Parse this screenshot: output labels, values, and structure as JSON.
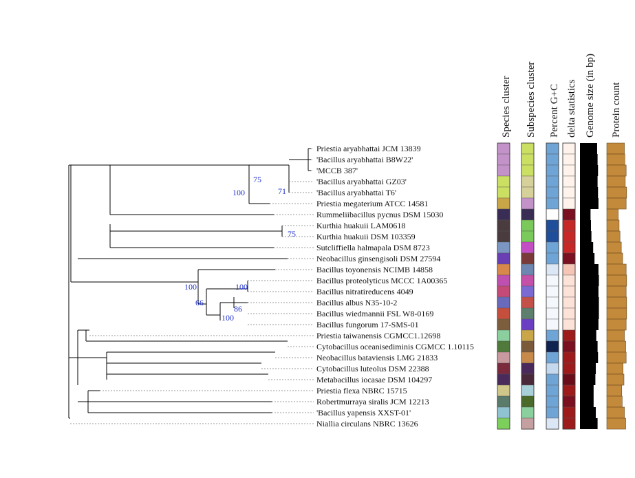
{
  "columns": [
    "Species cluster",
    "Subspecies cluster",
    "Percent G+C",
    "delta statistics",
    "Genome size (in bp)",
    "Protein count"
  ],
  "taxa": [
    "Priestia aryabhattai JCM 13839",
    "'Bacillus  aryabhattai  B8W22'",
    "'MCCB  387'",
    "'Bacillus  aryabhattai  GZ03'",
    "'Bacillus  aryabhattai  T6'",
    "Priestia megaterium ATCC 14581",
    "Rummeliibacillus pycnus DSM 15030",
    "Kurthia huakuii LAM0618",
    "Kurthia huakuii DSM 103359",
    "Sutcliffiella halmapala DSM 8723",
    "Neobacillus ginsengisoli DSM 27594",
    "Bacillus toyonensis NCIMB 14858",
    "Bacillus proteolyticus MCCC 1A00365",
    "Bacillus nitratireducens 4049",
    "Bacillus albus N35-10-2",
    "Bacillus wiedmannii FSL W8-0169",
    "Bacillus fungorum 17-SMS-01",
    "Priestia taiwanensis CGMCC1.12698",
    "Cytobacillus oceanisediminis CGMCC 1.10115",
    "Neobacillus bataviensis LMG 21833",
    "Cytobacillus luteolus DSM 22388",
    "Metabacillus iocasae DSM 104297",
    "Priestia flexa NBRC 15715",
    "Robertmurraya siralis JCM 12213",
    "'Bacillus yapensis XXST-01'",
    "Niallia circulans NBRC 13626"
  ],
  "bootstrap_labels": [
    "75",
    "100",
    "71",
    "75",
    "100",
    "100",
    "66",
    "86",
    "100"
  ],
  "colors": {
    "branch": "#000000",
    "bootstrap": "#2233cc",
    "bar_fill": "#c38a3c",
    "bar_stroke": "#6b4a1c",
    "genome_bar": "#000000"
  },
  "species_cluster_colors": [
    "#c392c9",
    "#c392c9",
    "#c392c9",
    "#cbe062",
    "#cbe062",
    "#c9a648",
    "#3a2d55",
    "#4a3c3e",
    "#4a3c3e",
    "#7b96c2",
    "#6a3fb4",
    "#d8884a",
    "#c050b0",
    "#c64a78",
    "#6a6abd",
    "#c44f3c",
    "#7d5e3c",
    "#8bcf9e",
    "#4f7a3c",
    "#c89aa0",
    "#7a2a3c",
    "#4a2a5a",
    "#cfc68a",
    "#5a7a6a",
    "#8fc3cf",
    "#7ccf5a"
  ],
  "subspecies_cluster_colors": [
    "#cbe062",
    "#cbe062",
    "#cbe062",
    "#d6d19a",
    "#d6d19a",
    "#c392c9",
    "#3a2d55",
    "#7bc95a",
    "#7bc95a",
    "#c44fc4",
    "#7a3a3a",
    "#6e86b2",
    "#c450a8",
    "#7a6ad2",
    "#c4504a",
    "#5e7e6e",
    "#6a3fc4",
    "#c9a648",
    "#7a5a3a",
    "#c88a4a",
    "#4a2a5a",
    "#4a2a3a",
    "#a8d0d8",
    "#4a6a2a",
    "#8bcf9e",
    "#c4a0a0"
  ],
  "gc_colors": [
    "#6fa4d6",
    "#6fa4d6",
    "#6fa4d6",
    "#6fa4d6",
    "#6fa4d6",
    "#6fa4d6",
    "#ffffff",
    "#1f4e9a",
    "#1f4e9a",
    "#6fa4d6",
    "#6fa4d6",
    "#dbe7f5",
    "#f4f7fc",
    "#f4f7fc",
    "#f4f7fc",
    "#f4f7fc",
    "#f4f7fc",
    "#6fa4d6",
    "#10224f",
    "#6fa4d6",
    "#c4d8ee",
    "#6fa4d6",
    "#6fa4d6",
    "#6fa4d6",
    "#6fa4d6",
    "#dbe7f5"
  ],
  "delta_colors": [
    "#fff3ec",
    "#fff3ec",
    "#fff3ec",
    "#fff3ec",
    "#fff3ec",
    "#fff3ec",
    "#7a1020",
    "#c62828",
    "#c62828",
    "#c62828",
    "#7a1020",
    "#f5c6b6",
    "#fde2d8",
    "#fde2d8",
    "#fde2d8",
    "#fde2d8",
    "#fde2d8",
    "#9e1b1b",
    "#7a1020",
    "#9e1b1b",
    "#9e1b1b",
    "#6a0f1a",
    "#9e1b1b",
    "#7a1020",
    "#9e1b1b",
    "#9e1b1b"
  ],
  "genome_size_fraction": [
    0.78,
    0.8,
    0.82,
    0.8,
    0.82,
    0.84,
    0.48,
    0.5,
    0.52,
    0.6,
    0.66,
    0.84,
    0.86,
    0.84,
    0.86,
    0.86,
    0.84,
    0.74,
    0.8,
    0.82,
    0.72,
    0.7,
    0.62,
    0.62,
    0.72,
    0.8
  ],
  "protein_count_fraction": [
    0.8,
    0.82,
    0.88,
    0.84,
    0.9,
    0.88,
    0.52,
    0.56,
    0.6,
    0.66,
    0.72,
    0.88,
    0.9,
    0.88,
    0.9,
    0.9,
    0.88,
    0.8,
    0.86,
    0.88,
    0.74,
    0.78,
    0.68,
    0.7,
    0.8,
    0.86
  ]
}
